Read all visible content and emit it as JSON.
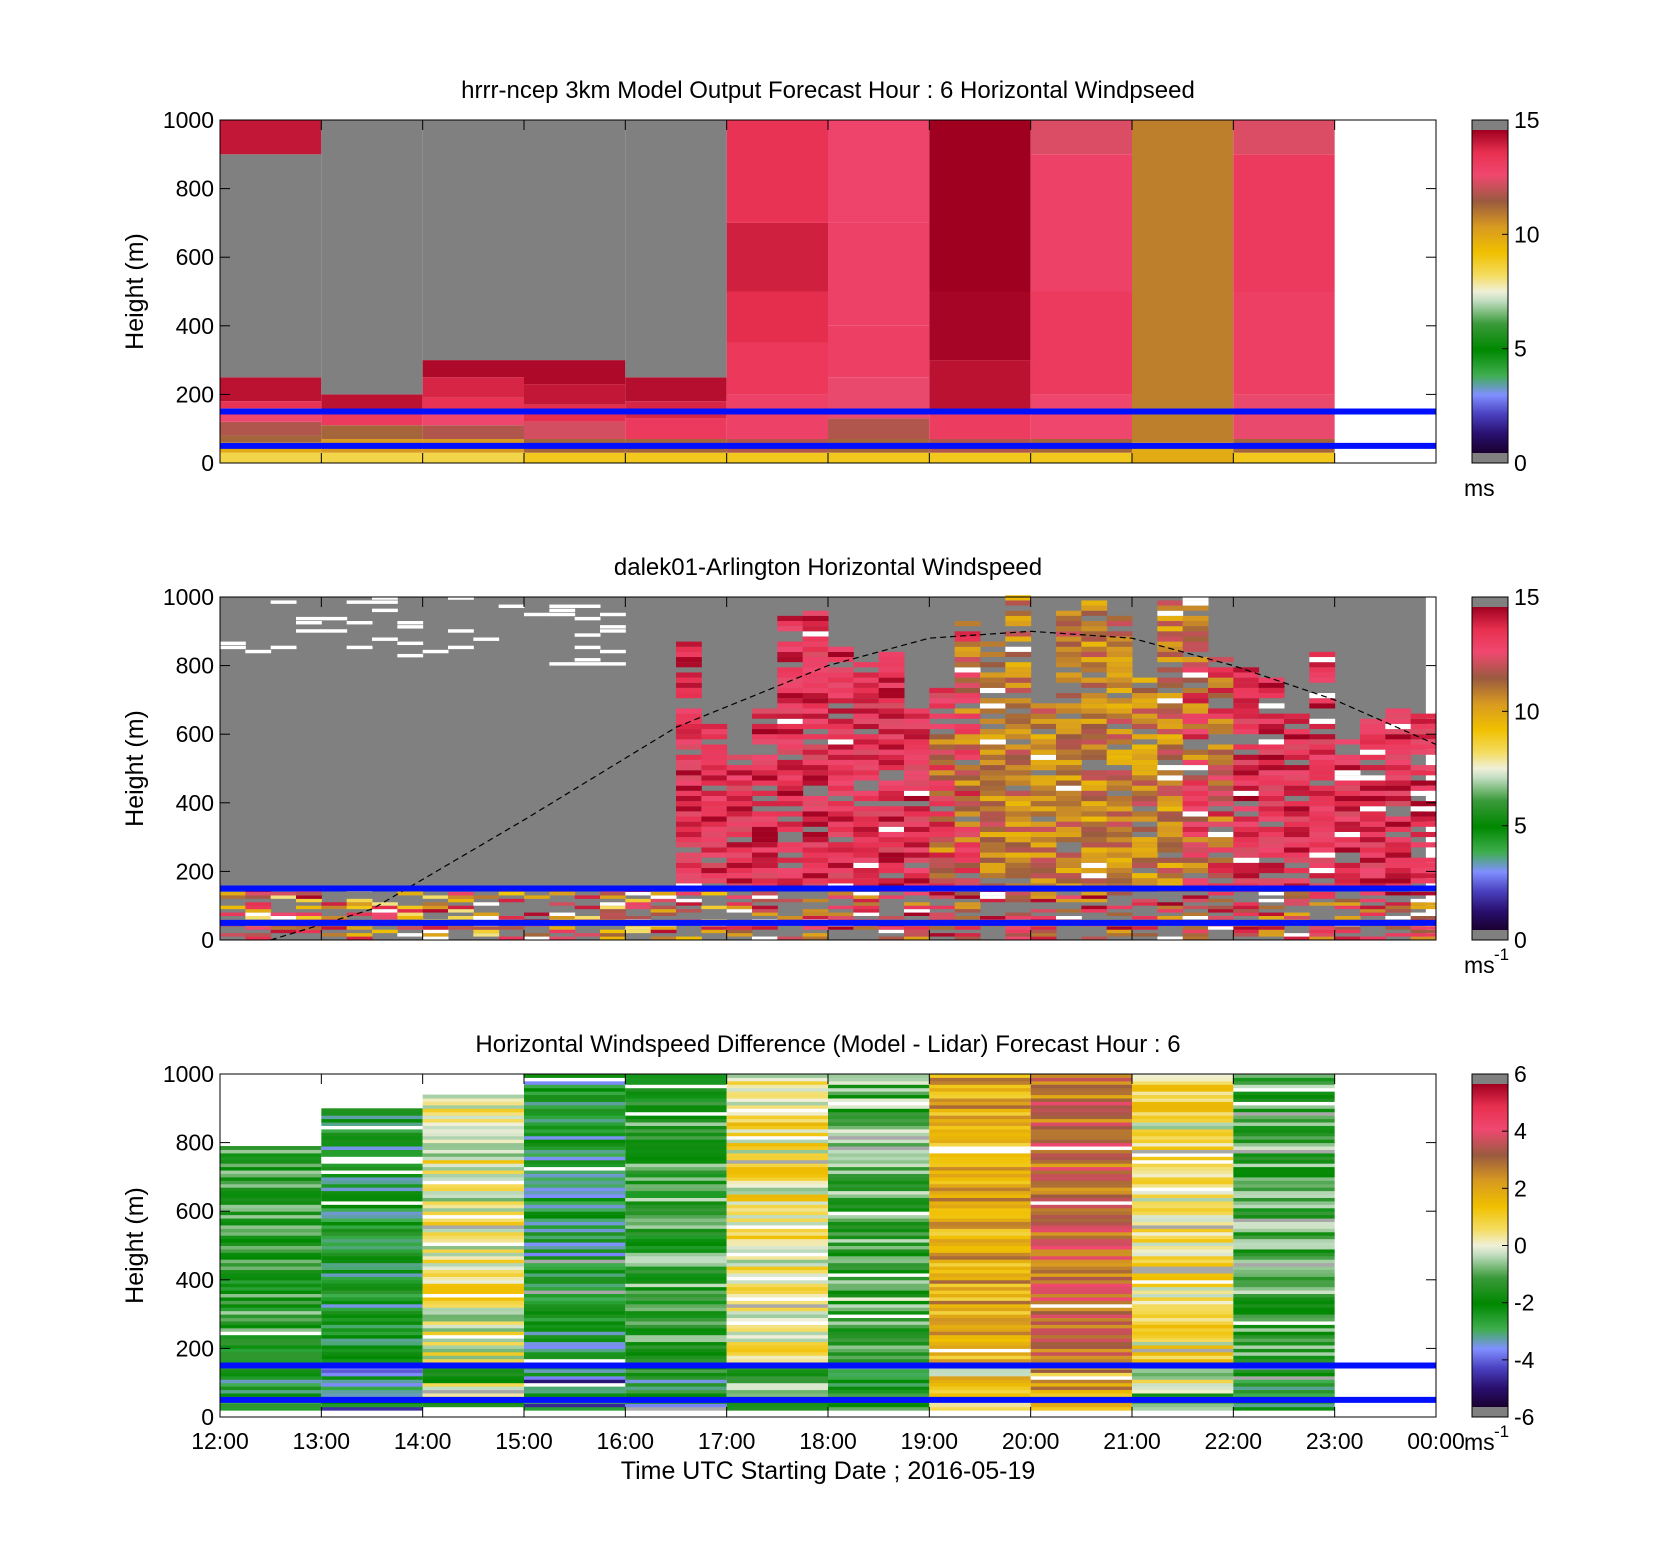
{
  "chart_data": [
    {
      "type": "heatmap",
      "title": "hrrr-ncep 3km Model Output   Forecast Hour : 6 Horizontal Windpseed",
      "ylabel": "Height (m)",
      "xlabel": "",
      "ylim": [
        0,
        1000
      ],
      "yticks": [
        "0",
        "200",
        "400",
        "600",
        "800",
        "1000"
      ],
      "colorbar": {
        "ticks": [
          "0",
          "5",
          "10",
          "15"
        ],
        "range": [
          0,
          15
        ],
        "unit": "ms",
        "unit_sup": ""
      },
      "reference_lines": [
        {
          "height": 150,
          "color": "#0010ff"
        },
        {
          "height": 50,
          "color": "#0010ff"
        }
      ],
      "columns": [
        {
          "x_start": 12,
          "x_end": 13,
          "segments": [
            {
              "y0": 0,
              "y1": 30,
              "v": 8.5
            },
            {
              "y0": 30,
              "y1": 60,
              "v": 10
            },
            {
              "y0": 60,
              "y1": 80,
              "v": 11.5
            },
            {
              "y0": 80,
              "y1": 120,
              "v": 12
            },
            {
              "y0": 120,
              "y1": 160,
              "v": 13
            },
            {
              "y0": 160,
              "y1": 180,
              "v": 13.8
            },
            {
              "y0": 180,
              "y1": 250,
              "v": 14.6
            },
            {
              "y0": 250,
              "y1": 900,
              "v": null
            },
            {
              "y0": 900,
              "y1": 1000,
              "v": 14.5
            }
          ]
        },
        {
          "x_start": 13,
          "x_end": 14,
          "segments": [
            {
              "y0": 0,
              "y1": 30,
              "v": 8.5
            },
            {
              "y0": 30,
              "y1": 70,
              "v": 10.5
            },
            {
              "y0": 70,
              "y1": 110,
              "v": 11.5
            },
            {
              "y0": 110,
              "y1": 150,
              "v": 13.5
            },
            {
              "y0": 150,
              "y1": 200,
              "v": 14.6
            },
            {
              "y0": 200,
              "y1": 1000,
              "v": null
            }
          ]
        },
        {
          "x_start": 14,
          "x_end": 15,
          "segments": [
            {
              "y0": 0,
              "y1": 30,
              "v": 8.5
            },
            {
              "y0": 30,
              "y1": 70,
              "v": 10.5
            },
            {
              "y0": 70,
              "y1": 110,
              "v": 12
            },
            {
              "y0": 110,
              "y1": 150,
              "v": 13
            },
            {
              "y0": 150,
              "y1": 190,
              "v": 13.8
            },
            {
              "y0": 190,
              "y1": 250,
              "v": 14.2
            },
            {
              "y0": 250,
              "y1": 300,
              "v": 14.8
            },
            {
              "y0": 300,
              "y1": 1000,
              "v": null
            }
          ]
        },
        {
          "x_start": 15,
          "x_end": 16,
          "segments": [
            {
              "y0": 0,
              "y1": 30,
              "v": 9
            },
            {
              "y0": 30,
              "y1": 70,
              "v": 11.5
            },
            {
              "y0": 70,
              "y1": 120,
              "v": 12.5
            },
            {
              "y0": 120,
              "y1": 170,
              "v": 14
            },
            {
              "y0": 170,
              "y1": 230,
              "v": 14.5
            },
            {
              "y0": 230,
              "y1": 300,
              "v": 14.8
            },
            {
              "y0": 300,
              "y1": 1000,
              "v": null
            }
          ]
        },
        {
          "x_start": 16,
          "x_end": 17,
          "segments": [
            {
              "y0": 0,
              "y1": 30,
              "v": 9
            },
            {
              "y0": 30,
              "y1": 70,
              "v": 11.5
            },
            {
              "y0": 70,
              "y1": 130,
              "v": 13.5
            },
            {
              "y0": 130,
              "y1": 180,
              "v": 14.2
            },
            {
              "y0": 180,
              "y1": 250,
              "v": 14.7
            },
            {
              "y0": 250,
              "y1": 1000,
              "v": null
            }
          ]
        },
        {
          "x_start": 17,
          "x_end": 18,
          "segments": [
            {
              "y0": 0,
              "y1": 30,
              "v": 9
            },
            {
              "y0": 30,
              "y1": 70,
              "v": 12
            },
            {
              "y0": 70,
              "y1": 200,
              "v": 13.2
            },
            {
              "y0": 200,
              "y1": 350,
              "v": 13.6
            },
            {
              "y0": 350,
              "y1": 500,
              "v": 14.0
            },
            {
              "y0": 500,
              "y1": 700,
              "v": 14.3
            },
            {
              "y0": 700,
              "y1": 1000,
              "v": 13.8
            }
          ]
        },
        {
          "x_start": 18,
          "x_end": 19,
          "segments": [
            {
              "y0": 0,
              "y1": 30,
              "v": 9
            },
            {
              "y0": 30,
              "y1": 70,
              "v": 11.5
            },
            {
              "y0": 70,
              "y1": 130,
              "v": 12
            },
            {
              "y0": 130,
              "y1": 250,
              "v": 12.8
            },
            {
              "y0": 250,
              "y1": 400,
              "v": 13.3
            },
            {
              "y0": 400,
              "y1": 700,
              "v": 13.2
            },
            {
              "y0": 700,
              "y1": 1000,
              "v": 13.1
            }
          ]
        },
        {
          "x_start": 19,
          "x_end": 20,
          "segments": [
            {
              "y0": 0,
              "y1": 30,
              "v": 9
            },
            {
              "y0": 30,
              "y1": 70,
              "v": 12
            },
            {
              "y0": 70,
              "y1": 150,
              "v": 13.4
            },
            {
              "y0": 150,
              "y1": 300,
              "v": 14.6
            },
            {
              "y0": 300,
              "y1": 500,
              "v": 14.9
            },
            {
              "y0": 500,
              "y1": 1000,
              "v": 15
            }
          ]
        },
        {
          "x_start": 20,
          "x_end": 21,
          "segments": [
            {
              "y0": 0,
              "y1": 30,
              "v": 9
            },
            {
              "y0": 30,
              "y1": 70,
              "v": 11.5
            },
            {
              "y0": 70,
              "y1": 200,
              "v": 13
            },
            {
              "y0": 200,
              "y1": 500,
              "v": 13.5
            },
            {
              "y0": 500,
              "y1": 900,
              "v": 13.2
            },
            {
              "y0": 900,
              "y1": 1000,
              "v": 12.6
            }
          ]
        },
        {
          "x_start": 21,
          "x_end": 22,
          "segments": [
            {
              "y0": 0,
              "y1": 60,
              "v": 10
            },
            {
              "y0": 60,
              "y1": 1000,
              "v": 11.0
            }
          ]
        },
        {
          "x_start": 22,
          "x_end": 23,
          "segments": [
            {
              "y0": 0,
              "y1": 30,
              "v": 9
            },
            {
              "y0": 30,
              "y1": 70,
              "v": 11.5
            },
            {
              "y0": 70,
              "y1": 200,
              "v": 12.8
            },
            {
              "y0": 200,
              "y1": 500,
              "v": 13.3
            },
            {
              "y0": 500,
              "y1": 900,
              "v": 13.5
            },
            {
              "y0": 900,
              "y1": 1000,
              "v": 12.6
            }
          ]
        }
      ]
    },
    {
      "type": "heatmap",
      "title": "dalek01-Arlington  Horizontal Windspeed",
      "ylabel": "Height (m)",
      "xlabel": "",
      "ylim": [
        0,
        1000
      ],
      "yticks": [
        "0",
        "200",
        "400",
        "600",
        "800",
        "1000"
      ],
      "colorbar": {
        "ticks": [
          "0",
          "5",
          "10",
          "15"
        ],
        "range": [
          0,
          15
        ],
        "unit": "ms",
        "unit_sup": "-1"
      },
      "reference_lines": [
        {
          "height": 150,
          "color": "#0010ff"
        },
        {
          "height": 50,
          "color": "#0010ff"
        }
      ],
      "sun_curve": {
        "x": [
          12.5,
          13.5,
          15,
          16.5,
          18,
          19,
          20,
          21,
          22,
          23,
          24
        ],
        "y": [
          0,
          90,
          350,
          620,
          800,
          880,
          900,
          880,
          800,
          700,
          570
        ]
      }
    },
    {
      "type": "heatmap",
      "title": "Horizontal Windspeed Difference (Model - Lidar) Forecast Hour : 6",
      "ylabel": "Height (m)",
      "xlabel": "Time UTC  Starting Date ; 2016-05-19",
      "ylim": [
        0,
        1000
      ],
      "yticks": [
        "0",
        "200",
        "400",
        "600",
        "800",
        "1000"
      ],
      "xticks": [
        "12:00",
        "13:00",
        "14:00",
        "15:00",
        "16:00",
        "17:00",
        "18:00",
        "19:00",
        "20:00",
        "21:00",
        "22:00",
        "23:00",
        "00:00"
      ],
      "colorbar": {
        "ticks": [
          "-6",
          "-4",
          "-2",
          "0",
          "2",
          "4",
          "6"
        ],
        "range": [
          -6,
          6
        ],
        "unit": "ms",
        "unit_sup": "-1"
      },
      "reference_lines": [
        {
          "height": 150,
          "color": "#0010ff"
        },
        {
          "height": 50,
          "color": "#0010ff"
        }
      ],
      "columns": [
        {
          "x_start": 12,
          "x_end": 13,
          "top": 790,
          "base": -1.6
        },
        {
          "x_start": 13,
          "x_end": 14,
          "top": 900,
          "base": -2.6
        },
        {
          "x_start": 14,
          "x_end": 15,
          "top": 940,
          "base": 0.3
        },
        {
          "x_start": 15,
          "x_end": 16,
          "top": 1000,
          "base": -2.8
        },
        {
          "x_start": 16,
          "x_end": 17,
          "top": 1000,
          "base": -1.5
        },
        {
          "x_start": 17,
          "x_end": 18,
          "top": 1000,
          "base": 0.5
        },
        {
          "x_start": 18,
          "x_end": 19,
          "top": 1000,
          "base": -1.2
        },
        {
          "x_start": 19,
          "x_end": 20,
          "top": 1000,
          "base": 2.0
        },
        {
          "x_start": 20,
          "x_end": 21,
          "top": 1000,
          "base": 3.2
        },
        {
          "x_start": 21,
          "x_end": 22,
          "top": 1000,
          "base": 0.5
        },
        {
          "x_start": 22,
          "x_end": 23,
          "top": 1000,
          "base": -1.4
        }
      ]
    }
  ]
}
